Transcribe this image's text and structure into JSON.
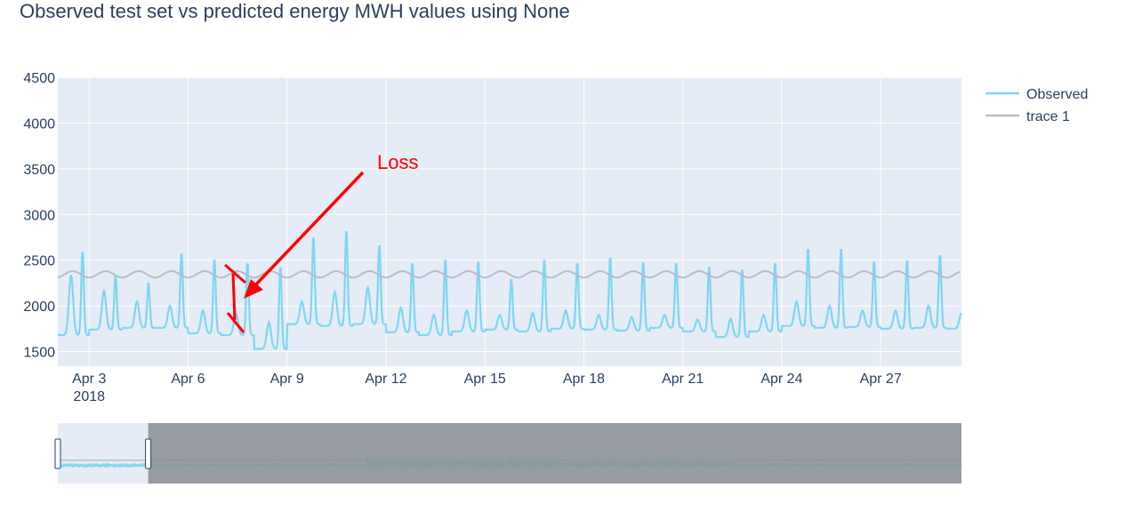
{
  "title": "Observed test set vs predicted energy MWH values using None",
  "annotation": {
    "text": "Loss",
    "color": "#ff0000"
  },
  "colors": {
    "observed": "#7fd6f2",
    "trace1": "#b8bcc8",
    "plot_bg": "#e5ecf6",
    "grid": "#ffffff",
    "text": "#2a3f5f",
    "mask": "#8a8e94"
  },
  "chart_data": {
    "type": "line",
    "title": "Observed test set vs predicted energy MWH values using None",
    "xlabel": "",
    "ylabel": "",
    "ylim": [
      1340,
      4500
    ],
    "y_ticks": [
      1500,
      2000,
      2500,
      3000,
      3500,
      4000,
      4500
    ],
    "y_tick_labels": [
      "1500",
      "2000",
      "2500",
      "3000",
      "3500",
      "4000",
      "4500"
    ],
    "x_ticks": [
      {
        "label": "Apr 3",
        "sublabel": "2018",
        "day": 3
      },
      {
        "label": "Apr 6",
        "day": 6
      },
      {
        "label": "Apr 9",
        "day": 9
      },
      {
        "label": "Apr 12",
        "day": 12
      },
      {
        "label": "Apr 15",
        "day": 15
      },
      {
        "label": "Apr 18",
        "day": 18
      },
      {
        "label": "Apr 21",
        "day": 21
      },
      {
        "label": "Apr 24",
        "day": 24
      },
      {
        "label": "Apr 27",
        "day": 27
      }
    ],
    "x_range_days": [
      2.05,
      29.45
    ],
    "grid": true,
    "legend_position": "top-right",
    "series": [
      {
        "name": "Observed",
        "color": "#7fd6f2",
        "peaks": [
          2610,
          2350,
          2260,
          2590,
          2520,
          2480,
          2440,
          2770,
          2840,
          2680,
          2480,
          2520,
          2500,
          2300,
          2520,
          2480,
          2540,
          2490,
          2480,
          2440,
          2410,
          2480,
          2640,
          2640,
          2500,
          2510,
          2570,
          2520,
          2380
        ],
        "valleys": [
          1680,
          1740,
          1760,
          1760,
          1700,
          1680,
          1530,
          1800,
          1780,
          1800,
          1710,
          1680,
          1720,
          1740,
          1720,
          1750,
          1740,
          1730,
          1760,
          1720,
          1660,
          1720,
          1780,
          1760,
          1770,
          1750,
          1760,
          1750,
          1560
        ],
        "secondary": [
          2340,
          2160,
          2050,
          2000,
          1950,
          1920,
          1820,
          2050,
          2150,
          2200,
          1980,
          1900,
          1950,
          1900,
          1920,
          1950,
          1900,
          1880,
          1900,
          1850,
          1860,
          1900,
          2050,
          2000,
          1950,
          1950,
          2000,
          1920,
          1900
        ]
      },
      {
        "name": "trace 1",
        "color": "#b8bcc8",
        "base": 2345,
        "amplitude": 35
      }
    ]
  },
  "range_slider": {
    "window_start_day": 2.05,
    "window_end_day": 29.45,
    "selected_fraction": 0.1
  }
}
